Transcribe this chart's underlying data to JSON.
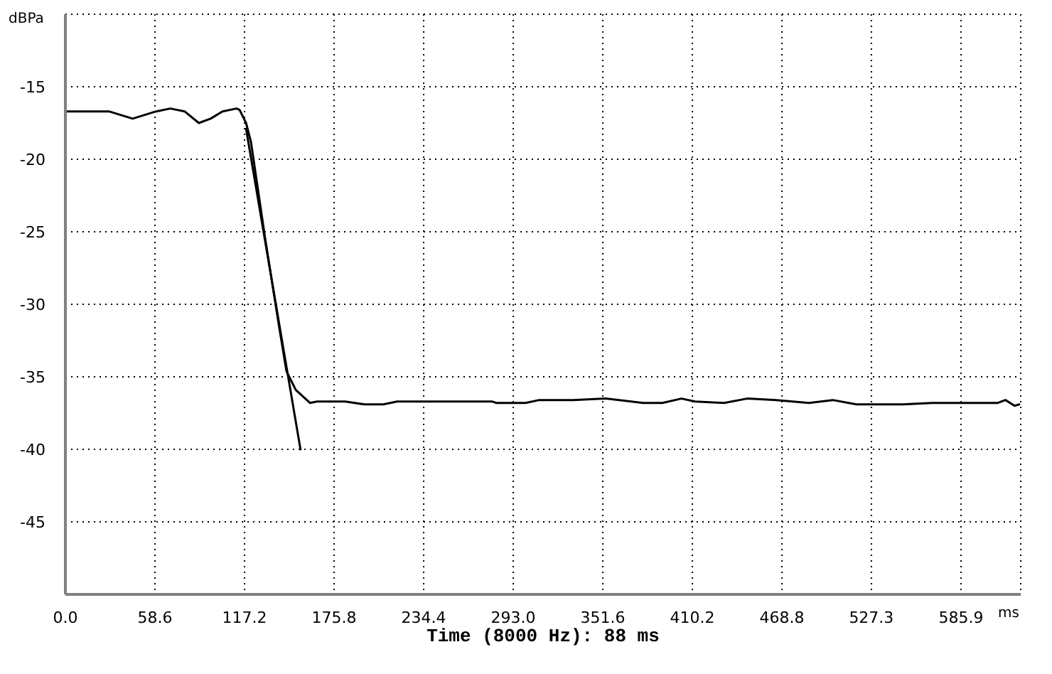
{
  "chart_data": {
    "type": "line",
    "xlabel": "Time (8000 Hz): 88 ms",
    "ylabel": "dBPa",
    "annotations": [
      "ms"
    ],
    "xlim": [
      0,
      625
    ],
    "ylim": [
      -50,
      -10
    ],
    "xticks": [
      {
        "value": 0,
        "label": "0.0"
      },
      58.6,
      117.2,
      175.8,
      234.4,
      {
        "value": 293,
        "label": "293.0"
      },
      351.6,
      410.2,
      468.8,
      527.3,
      585.9
    ],
    "yticks": [
      -45,
      -40,
      -35,
      -30,
      -25,
      -20,
      -15
    ],
    "grid": true,
    "marker": "none",
    "line_style": "solid",
    "series": [
      {
        "color": "#000000",
        "x": [
          0,
          28.5,
          44,
          59.4,
          68.7,
          78,
          87.3,
          95,
          102.8,
          112,
          114,
          118.2,
          121.4,
          130.6,
          139.9,
          144.6,
          150.7,
          160,
          164.6,
          183,
          195.6,
          208,
          217,
          279,
          282,
          301,
          310,
          332,
          353.5,
          378,
          390.6,
          403,
          412,
          431,
          446,
          465,
          486.5,
          502,
          517.5,
          548,
          567,
          595,
          610,
          615,
          621,
          624
        ],
        "values": [
          -16.7,
          -16.7,
          -17.2,
          -16.7,
          -16.5,
          -16.7,
          -17.5,
          -17.2,
          -16.7,
          -16.5,
          -16.6,
          -17.5,
          -18.8,
          -25.4,
          -31.6,
          -34.6,
          -35.9,
          -36.8,
          -36.7,
          -36.7,
          -36.9,
          -36.9,
          -36.7,
          -36.7,
          -36.8,
          -36.8,
          -36.6,
          -36.6,
          -36.5,
          -36.8,
          -36.8,
          -36.5,
          -36.7,
          -36.8,
          -36.5,
          -36.6,
          -36.8,
          -36.6,
          -36.9,
          -36.9,
          -36.8,
          -36.8,
          -36.8,
          -36.6,
          -37.0,
          -36.9
        ]
      },
      {
        "color": "#000000",
        "x": [
          118.2,
          153.8
        ],
        "values": [
          -17.9,
          -40.0
        ]
      }
    ]
  }
}
